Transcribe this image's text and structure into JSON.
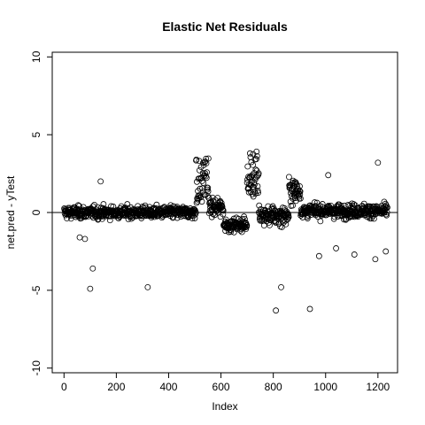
{
  "chart_data": {
    "type": "scatter",
    "title": "Elastic Net Residuals",
    "xlabel": "Index",
    "ylabel": "net.pred - yTest",
    "xlim": [
      -45,
      1275
    ],
    "ylim": [
      -10.3,
      10.3
    ],
    "x_ticks": [
      0,
      200,
      400,
      600,
      800,
      1000,
      1200
    ],
    "y_ticks": [
      -10,
      -5,
      0,
      5,
      10
    ],
    "reference_line_y": 0,
    "grid": false,
    "legend": "none",
    "marker": "open-circle",
    "n_points": 1236,
    "outliers": [
      {
        "x": 100,
        "y": -4.9
      },
      {
        "x": 110,
        "y": -3.6
      },
      {
        "x": 320,
        "y": -4.8
      },
      {
        "x": 810,
        "y": -6.3
      },
      {
        "x": 830,
        "y": -4.8
      },
      {
        "x": 940,
        "y": -6.2
      },
      {
        "x": 1010,
        "y": 2.4
      },
      {
        "x": 1200,
        "y": 3.2
      },
      {
        "x": 140,
        "y": 2.0
      },
      {
        "x": 60,
        "y": -1.6
      },
      {
        "x": 80,
        "y": -1.7
      },
      {
        "x": 975,
        "y": -2.8
      },
      {
        "x": 1040,
        "y": -2.3
      },
      {
        "x": 1110,
        "y": -2.7
      },
      {
        "x": 1190,
        "y": -3.0
      },
      {
        "x": 1230,
        "y": -2.5
      }
    ],
    "segments": [
      {
        "x_start": 0,
        "x_end": 505,
        "center": 0.0,
        "spread": 0.55
      },
      {
        "x_start": 505,
        "x_end": 555,
        "center": 1.6,
        "spread": 1.9
      },
      {
        "x_start": 555,
        "x_end": 610,
        "center": 0.3,
        "spread": 0.8
      },
      {
        "x_start": 610,
        "x_end": 700,
        "center": -0.8,
        "spread": 0.55
      },
      {
        "x_start": 700,
        "x_end": 745,
        "center": 2.0,
        "spread": 1.9
      },
      {
        "x_start": 745,
        "x_end": 860,
        "center": -0.2,
        "spread": 0.9
      },
      {
        "x_start": 860,
        "x_end": 905,
        "center": 1.4,
        "spread": 1.2
      },
      {
        "x_start": 905,
        "x_end": 1236,
        "center": 0.1,
        "spread": 0.6
      }
    ]
  }
}
